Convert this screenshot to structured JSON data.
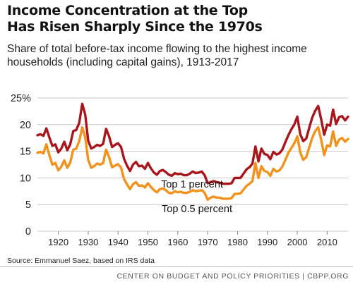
{
  "chart_data": {
    "type": "line",
    "title_lines": [
      "Income Concentration at the Top",
      "Has Risen Sharply Since the 1970s"
    ],
    "subtitle_lines": [
      "Share of total before-tax income flowing to the highest income",
      "households (including capital gains), 1913-2017"
    ],
    "xlabel": "",
    "ylabel": "",
    "xlim": [
      1913,
      2017
    ],
    "ylim": [
      0,
      25
    ],
    "y_ticks": [
      0,
      5,
      10,
      15,
      20,
      25
    ],
    "y_tick_labels": [
      "0",
      "5",
      "10",
      "15",
      "20",
      "25%"
    ],
    "x_ticks": [
      1920,
      1930,
      1940,
      1950,
      1960,
      1970,
      1980,
      1990,
      2000,
      2010
    ],
    "x_tick_labels": [
      "1920",
      "1930",
      "1940",
      "1950",
      "1960",
      "1970",
      "1980",
      "1990",
      "2000",
      "2010"
    ],
    "grid": "horizontal",
    "x": [
      1913,
      1914,
      1915,
      1916,
      1917,
      1918,
      1919,
      1920,
      1921,
      1922,
      1923,
      1924,
      1925,
      1926,
      1927,
      1928,
      1929,
      1930,
      1931,
      1932,
      1933,
      1934,
      1935,
      1936,
      1937,
      1938,
      1939,
      1940,
      1941,
      1942,
      1943,
      1944,
      1945,
      1946,
      1947,
      1948,
      1949,
      1950,
      1951,
      1952,
      1953,
      1954,
      1955,
      1956,
      1957,
      1958,
      1959,
      1960,
      1961,
      1962,
      1963,
      1964,
      1965,
      1966,
      1967,
      1968,
      1969,
      1970,
      1971,
      1972,
      1973,
      1974,
      1975,
      1976,
      1977,
      1978,
      1979,
      1980,
      1981,
      1982,
      1983,
      1984,
      1985,
      1986,
      1987,
      1988,
      1989,
      1990,
      1991,
      1992,
      1993,
      1994,
      1995,
      1996,
      1997,
      1998,
      1999,
      2000,
      2001,
      2002,
      2003,
      2004,
      2005,
      2006,
      2007,
      2008,
      2009,
      2010,
      2011,
      2012,
      2013,
      2014,
      2015,
      2016,
      2017
    ],
    "series": [
      {
        "name": "Top 1 percent",
        "color": "#a8161c",
        "label": "Top 1 percent",
        "values": [
          18.0,
          18.2,
          17.9,
          19.3,
          17.6,
          16.0,
          16.3,
          14.8,
          15.5,
          16.8,
          15.2,
          16.3,
          18.8,
          19.0,
          20.3,
          23.9,
          21.9,
          17.0,
          15.5,
          15.8,
          16.2,
          16.0,
          16.4,
          19.2,
          17.8,
          15.8,
          16.2,
          16.5,
          15.8,
          13.6,
          12.3,
          11.3,
          12.5,
          13.0,
          12.2,
          12.3,
          11.7,
          12.8,
          11.8,
          11.0,
          10.6,
          11.3,
          11.5,
          11.1,
          10.6,
          10.4,
          10.9,
          10.7,
          10.8,
          10.5,
          10.5,
          10.8,
          11.2,
          10.9,
          11.0,
          11.2,
          10.5,
          9.0,
          9.2,
          9.4,
          9.2,
          9.1,
          8.9,
          8.9,
          8.9,
          9.0,
          10.0,
          10.0,
          10.0,
          10.8,
          11.6,
          12.0,
          12.7,
          15.9,
          13.1,
          15.5,
          14.5,
          14.3,
          13.5,
          14.9,
          14.4,
          14.6,
          15.3,
          16.7,
          18.0,
          19.1,
          20.0,
          21.5,
          18.2,
          16.9,
          17.4,
          19.4,
          21.3,
          22.6,
          23.5,
          21.0,
          18.1,
          20.0,
          19.8,
          22.8,
          20.1,
          21.4,
          21.6,
          20.8,
          21.5
        ]
      },
      {
        "name": "Top 0.5 percent",
        "color": "#f2921b",
        "label": "Top 0.5 percent",
        "values": [
          14.7,
          14.9,
          14.6,
          16.3,
          14.3,
          12.5,
          12.8,
          11.4,
          12.1,
          13.3,
          11.9,
          12.9,
          15.3,
          15.5,
          16.9,
          19.5,
          17.6,
          13.4,
          11.9,
          12.2,
          12.7,
          12.5,
          12.8,
          15.3,
          13.9,
          12.0,
          12.3,
          12.6,
          11.9,
          9.8,
          8.8,
          7.9,
          8.8,
          9.2,
          8.5,
          8.6,
          8.2,
          9.0,
          8.3,
          7.7,
          7.3,
          7.9,
          8.0,
          7.7,
          7.2,
          7.1,
          7.5,
          7.3,
          7.4,
          7.2,
          7.2,
          7.4,
          7.7,
          7.5,
          7.6,
          7.7,
          7.2,
          5.9,
          6.3,
          6.5,
          6.3,
          6.3,
          6.1,
          6.1,
          6.1,
          6.2,
          7.0,
          7.0,
          7.1,
          7.8,
          8.5,
          8.9,
          9.4,
          12.8,
          10.0,
          12.2,
          11.3,
          11.1,
          10.4,
          11.7,
          11.2,
          11.4,
          12.1,
          13.4,
          14.7,
          15.6,
          16.5,
          17.8,
          14.8,
          13.4,
          13.9,
          15.7,
          17.5,
          18.8,
          19.5,
          17.2,
          14.3,
          16.1,
          15.9,
          18.7,
          16.0,
          17.2,
          17.5,
          16.8,
          17.3
        ]
      }
    ]
  },
  "source": "Source: Emmanuel Saez, based on IRS data",
  "footer": "CENTER ON BUDGET AND POLICY PRIORITIES | CBPP.ORG"
}
